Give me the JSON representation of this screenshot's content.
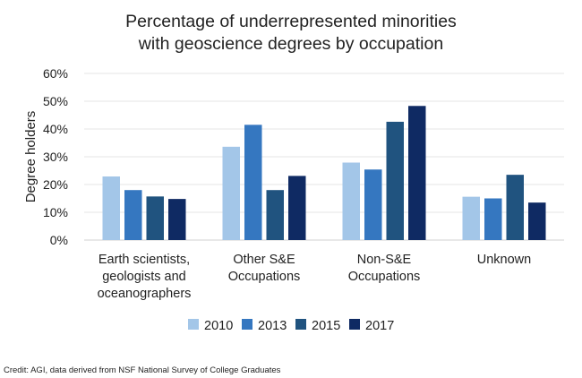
{
  "chart_data": {
    "type": "bar",
    "title": [
      "Percentage of underrepresented minorities",
      "with geoscience degrees by occupation"
    ],
    "ylabel": "Degree holders",
    "xlabel": "",
    "ylim": [
      0,
      60
    ],
    "yticks": [
      "0%",
      "10%",
      "20%",
      "30%",
      "40%",
      "50%",
      "60%"
    ],
    "grid": true,
    "legend_position": "bottom",
    "categories": [
      [
        "Earth scientists,",
        "geologists and",
        "oceanographers"
      ],
      [
        "Other S&E",
        "Occupations"
      ],
      [
        "Non-S&E",
        "Occupations"
      ],
      [
        "Unknown"
      ]
    ],
    "series": [
      {
        "name": "2010",
        "color": "#a3c6e8",
        "values": [
          22.9,
          33.6,
          27.9,
          15.6
        ]
      },
      {
        "name": "2013",
        "color": "#3577c0",
        "values": [
          18.0,
          41.5,
          25.4,
          15.0
        ]
      },
      {
        "name": "2015",
        "color": "#20537f",
        "values": [
          15.7,
          18.0,
          42.6,
          23.5
        ]
      },
      {
        "name": "2017",
        "color": "#0f2a63",
        "values": [
          14.8,
          23.1,
          48.3,
          13.5
        ]
      }
    ]
  },
  "credit": "Credit: AGI, data derived from NSF National Survey of College Graduates"
}
